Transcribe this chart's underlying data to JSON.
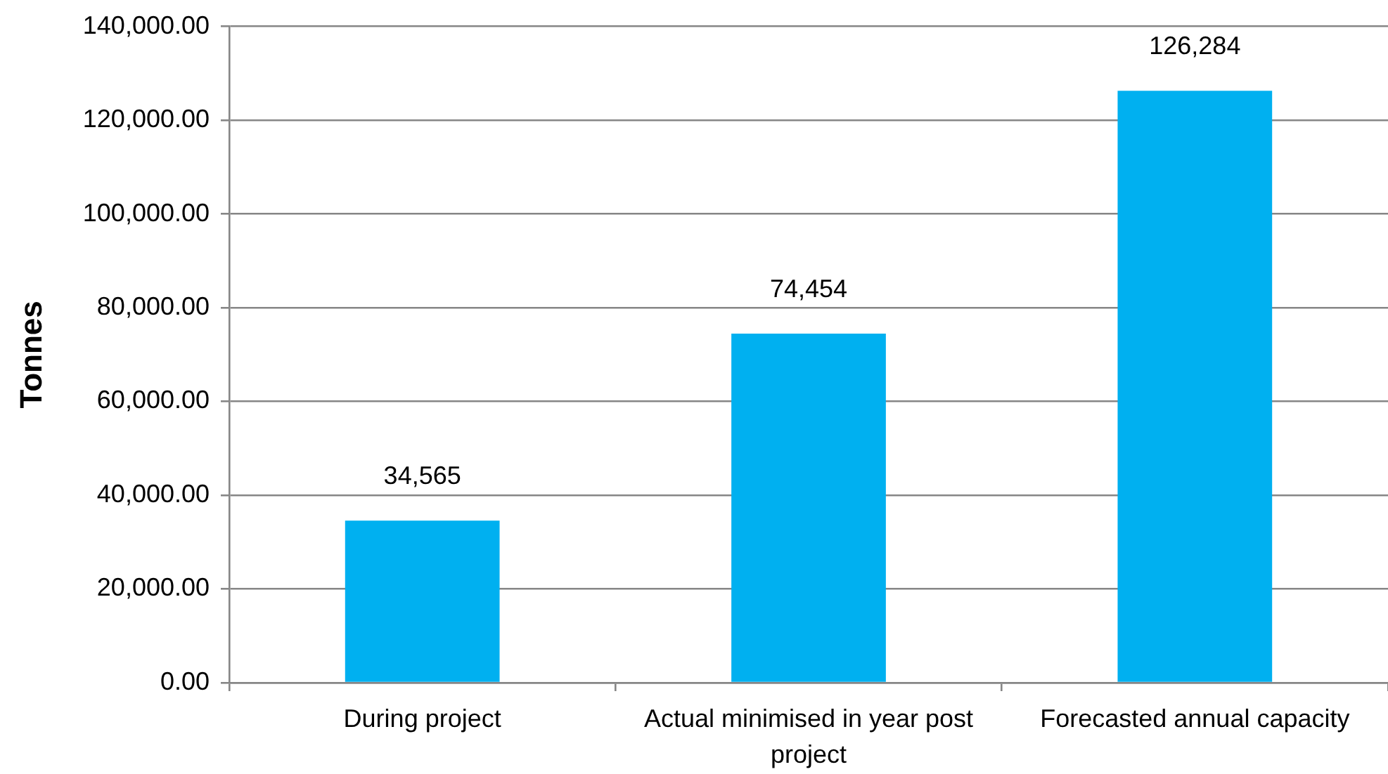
{
  "chart_data": {
    "type": "bar",
    "ylabel": "Tonnes",
    "categories": [
      "During project",
      "Actual minimised in year post project",
      "Forecasted annual capacity"
    ],
    "values": [
      34565,
      74454,
      126284
    ],
    "value_labels": [
      "34,565",
      "74,454",
      "126,284"
    ],
    "color": "#00b0f0",
    "ylim": [
      0,
      140000
    ],
    "yticks": [
      {
        "value": 0,
        "label": "0.00"
      },
      {
        "value": 20000,
        "label": "20,000.00"
      },
      {
        "value": 40000,
        "label": "40,000.00"
      },
      {
        "value": 60000,
        "label": "60,000.00"
      },
      {
        "value": 80000,
        "label": "80,000.00"
      },
      {
        "value": 100000,
        "label": "100,000.00"
      },
      {
        "value": 120000,
        "label": "120,000.00"
      },
      {
        "value": 140000,
        "label": "140,000.00"
      }
    ],
    "grid": "y"
  }
}
